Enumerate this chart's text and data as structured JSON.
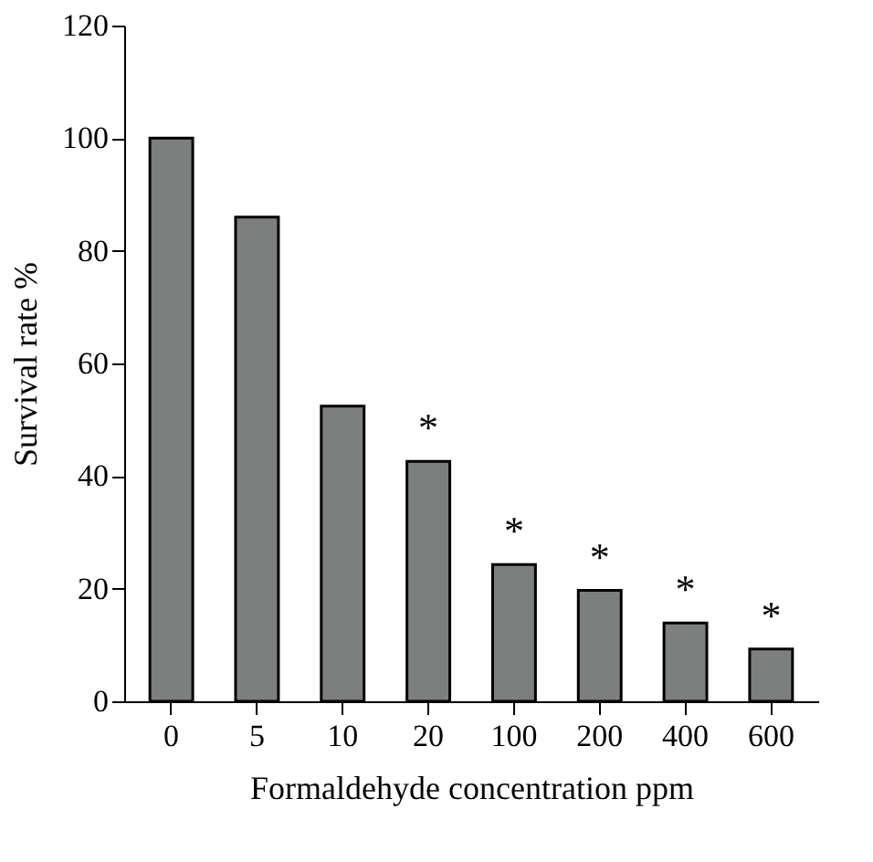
{
  "chart_data": {
    "type": "bar",
    "xlabel": "Formaldehyde concentration ppm",
    "ylabel": "Survival rate %",
    "categories": [
      "0",
      "5",
      "10",
      "20",
      "100",
      "200",
      "400",
      "600"
    ],
    "values": [
      100,
      86,
      52.4,
      42.6,
      24.3,
      19.7,
      13.9,
      9.3
    ],
    "color": "#7d7f7e",
    "ylim": [
      0,
      120
    ],
    "yticks": [
      0,
      20,
      40,
      60,
      80,
      100,
      120
    ],
    "grid": false,
    "annotations": [
      {
        "text": "*",
        "x": "20",
        "y": 42.6
      },
      {
        "text": "*",
        "x": "100",
        "y": 24.3
      },
      {
        "text": "*",
        "x": "200",
        "y": 19.7
      },
      {
        "text": "*",
        "x": "400",
        "y": 13.9
      },
      {
        "text": "*",
        "x": "600",
        "y": 9.3
      }
    ]
  }
}
